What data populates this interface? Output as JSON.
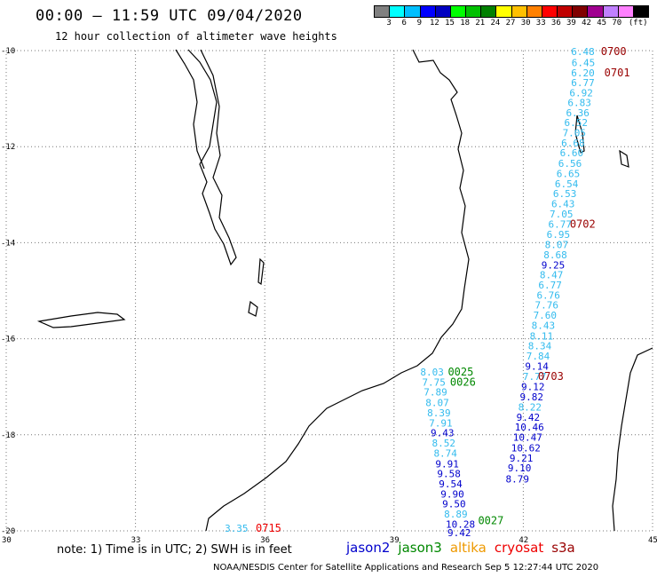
{
  "header": {
    "title": "00:00 — 11:59 UTC 09/04/2020",
    "subtitle": "12 hour collection of altimeter wave heights"
  },
  "scale": {
    "colors": [
      "#808080",
      "#00ffff",
      "#00bfff",
      "#0000ff",
      "#0000c0",
      "#00ff00",
      "#00c000",
      "#008000",
      "#ffff00",
      "#ffc000",
      "#ff8000",
      "#ff0000",
      "#c00000",
      "#800000",
      "#a00090",
      "#c080ff",
      "#ff80ff",
      "#000000"
    ],
    "labels": [
      "3",
      "6",
      "9",
      "12",
      "15",
      "18",
      "21",
      "24",
      "27",
      "30",
      "33",
      "36",
      "39",
      "42",
      "45",
      "70",
      "(ft)"
    ]
  },
  "axes": {
    "lat_ticks": [
      "-10",
      "-12",
      "-14",
      "-16",
      "-18",
      "-20"
    ],
    "lon_ticks": [
      "30",
      "33",
      "36",
      "39",
      "42",
      "45"
    ]
  },
  "wave_tracks": [
    {
      "lon": 43.11,
      "lat": -10.02,
      "v": "6.48",
      "c": "#33bbee"
    },
    {
      "lon": 43.12,
      "lat": -10.25,
      "v": "6.45",
      "c": "#33bbee"
    },
    {
      "lon": 43.11,
      "lat": -10.46,
      "v": "6.20",
      "c": "#33bbee"
    },
    {
      "lon": 43.11,
      "lat": -10.67,
      "v": "6.77",
      "c": "#33bbee"
    },
    {
      "lon": 43.07,
      "lat": -10.88,
      "v": "6.92",
      "c": "#33bbee"
    },
    {
      "lon": 43.03,
      "lat": -11.08,
      "v": "6.83",
      "c": "#33bbee"
    },
    {
      "lon": 42.99,
      "lat": -11.29,
      "v": "6.36",
      "c": "#33bbee"
    },
    {
      "lon": 42.95,
      "lat": -11.5,
      "v": "6.52",
      "c": "#33bbee"
    },
    {
      "lon": 42.91,
      "lat": -11.71,
      "v": "7.05",
      "c": "#33bbee"
    },
    {
      "lon": 42.88,
      "lat": -11.92,
      "v": "6.68",
      "c": "#33bbee"
    },
    {
      "lon": 42.85,
      "lat": -12.13,
      "v": "6.60",
      "c": "#33bbee"
    },
    {
      "lon": 42.81,
      "lat": -12.35,
      "v": "6.56",
      "c": "#33bbee"
    },
    {
      "lon": 42.77,
      "lat": -12.56,
      "v": "6.65",
      "c": "#33bbee"
    },
    {
      "lon": 42.73,
      "lat": -12.77,
      "v": "6.54",
      "c": "#33bbee"
    },
    {
      "lon": 42.69,
      "lat": -12.98,
      "v": "6.53",
      "c": "#33bbee"
    },
    {
      "lon": 42.65,
      "lat": -13.19,
      "v": "6.43",
      "c": "#33bbee"
    },
    {
      "lon": 42.61,
      "lat": -13.4,
      "v": "7.05",
      "c": "#33bbee"
    },
    {
      "lon": 42.58,
      "lat": -13.61,
      "v": "6.77",
      "c": "#33bbee"
    },
    {
      "lon": 42.54,
      "lat": -13.83,
      "v": "6.95",
      "c": "#33bbee"
    },
    {
      "lon": 42.5,
      "lat": -14.04,
      "v": "8.07",
      "c": "#33bbee"
    },
    {
      "lon": 42.47,
      "lat": -14.25,
      "v": "8.68",
      "c": "#33bbee"
    },
    {
      "lon": 42.42,
      "lat": -14.46,
      "v": "9.25",
      "c": "#0000cc"
    },
    {
      "lon": 42.38,
      "lat": -14.67,
      "v": "8.47",
      "c": "#33bbee"
    },
    {
      "lon": 42.35,
      "lat": -14.88,
      "v": "6.77",
      "c": "#33bbee"
    },
    {
      "lon": 42.31,
      "lat": -15.09,
      "v": "6.76",
      "c": "#33bbee"
    },
    {
      "lon": 42.27,
      "lat": -15.3,
      "v": "7.76",
      "c": "#33bbee"
    },
    {
      "lon": 42.23,
      "lat": -15.51,
      "v": "7.60",
      "c": "#33bbee"
    },
    {
      "lon": 42.19,
      "lat": -15.72,
      "v": "8.43",
      "c": "#33bbee"
    },
    {
      "lon": 42.15,
      "lat": -15.94,
      "v": "8.11",
      "c": "#33bbee"
    },
    {
      "lon": 42.11,
      "lat": -16.15,
      "v": "8.34",
      "c": "#33bbee"
    },
    {
      "lon": 42.07,
      "lat": -16.36,
      "v": "7.84",
      "c": "#33bbee"
    },
    {
      "lon": 42.04,
      "lat": -16.57,
      "v": "9.14",
      "c": "#0000cc"
    },
    {
      "lon": 41.99,
      "lat": -16.78,
      "v": "7.77",
      "c": "#33bbee"
    },
    {
      "lon": 41.95,
      "lat": -17.0,
      "v": "9.12",
      "c": "#0000cc"
    },
    {
      "lon": 41.92,
      "lat": -17.21,
      "v": "9.82",
      "c": "#0000cc"
    },
    {
      "lon": 41.88,
      "lat": -17.42,
      "v": "8.22",
      "c": "#33bbee"
    },
    {
      "lon": 41.84,
      "lat": -17.63,
      "v": "9.42",
      "c": "#0000cc"
    },
    {
      "lon": 41.8,
      "lat": -17.84,
      "v": "10.46",
      "c": "#0000cc"
    },
    {
      "lon": 41.76,
      "lat": -18.05,
      "v": "10.47",
      "c": "#0000cc"
    },
    {
      "lon": 41.72,
      "lat": -18.27,
      "v": "10.62",
      "c": "#0000cc"
    },
    {
      "lon": 41.68,
      "lat": -18.48,
      "v": "9.21",
      "c": "#0000cc"
    },
    {
      "lon": 41.64,
      "lat": -18.69,
      "v": "9.10",
      "c": "#0000cc"
    },
    {
      "lon": 41.59,
      "lat": -18.92,
      "v": "8.79",
      "c": "#0000cc"
    },
    {
      "lon": 39.61,
      "lat": -16.69,
      "v": "8.03",
      "c": "#33bbee"
    },
    {
      "lon": 39.65,
      "lat": -16.9,
      "v": "7.75",
      "c": "#33bbee"
    },
    {
      "lon": 39.69,
      "lat": -17.11,
      "v": "7.89",
      "c": "#33bbee"
    },
    {
      "lon": 39.73,
      "lat": -17.33,
      "v": "8.07",
      "c": "#33bbee"
    },
    {
      "lon": 39.77,
      "lat": -17.54,
      "v": "8.39",
      "c": "#33bbee"
    },
    {
      "lon": 39.81,
      "lat": -17.75,
      "v": "7.91",
      "c": "#33bbee"
    },
    {
      "lon": 39.85,
      "lat": -17.96,
      "v": "9.43",
      "c": "#0000cc"
    },
    {
      "lon": 39.88,
      "lat": -18.17,
      "v": "8.52",
      "c": "#33bbee"
    },
    {
      "lon": 39.92,
      "lat": -18.38,
      "v": "8.74",
      "c": "#33bbee"
    },
    {
      "lon": 39.96,
      "lat": -18.6,
      "v": "9.91",
      "c": "#0000cc"
    },
    {
      "lon": 40.0,
      "lat": -18.81,
      "v": "9.58",
      "c": "#0000cc"
    },
    {
      "lon": 40.04,
      "lat": -19.02,
      "v": "9.54",
      "c": "#0000cc"
    },
    {
      "lon": 40.08,
      "lat": -19.23,
      "v": "9.90",
      "c": "#0000cc"
    },
    {
      "lon": 40.12,
      "lat": -19.44,
      "v": "9.50",
      "c": "#0000cc"
    },
    {
      "lon": 40.16,
      "lat": -19.65,
      "v": "8.89",
      "c": "#33bbee"
    },
    {
      "lon": 40.2,
      "lat": -19.86,
      "v": "10.28",
      "c": "#0000cc"
    },
    {
      "lon": 40.24,
      "lat": -20.04,
      "v": "9.42",
      "c": "#0000cc"
    },
    {
      "lon": 35.07,
      "lat": -19.94,
      "v": "3.35",
      "c": "#33bbee"
    }
  ],
  "pass_times": [
    {
      "lon": 43.8,
      "lat": -10.02,
      "t": "0700",
      "c": "#990000"
    },
    {
      "lon": 43.88,
      "lat": -10.46,
      "t": "0701",
      "c": "#990000"
    },
    {
      "lon": 43.08,
      "lat": -13.61,
      "t": "0702",
      "c": "#990000"
    },
    {
      "lon": 42.34,
      "lat": -16.78,
      "t": "0703",
      "c": "#990000"
    },
    {
      "lon": 35.79,
      "lat": -19.94,
      "t": "0715",
      "c": "#ee0000"
    },
    {
      "lon": 40.25,
      "lat": -16.69,
      "t": "0025",
      "c": "#008800"
    },
    {
      "lon": 40.3,
      "lat": -16.9,
      "t": "0026",
      "c": "#008800"
    },
    {
      "lon": 40.95,
      "lat": -19.79,
      "t": "0027",
      "c": "#008800"
    }
  ],
  "footer": {
    "note": "note: 1) Time is in UTC; 2) SWH is in feet",
    "satellites": [
      {
        "name": "jason2",
        "color": "#0000cc"
      },
      {
        "name": "jason3",
        "color": "#008800"
      },
      {
        "name": "altika",
        "color": "#ee9900"
      },
      {
        "name": "cryosat",
        "color": "#ee0000"
      },
      {
        "name": "s3a",
        "color": "#990000"
      }
    ],
    "credit": "NOAA/NESDIS Center for Satellite Applications and Research    Sep  5 12:27:44 UTC 2020"
  }
}
